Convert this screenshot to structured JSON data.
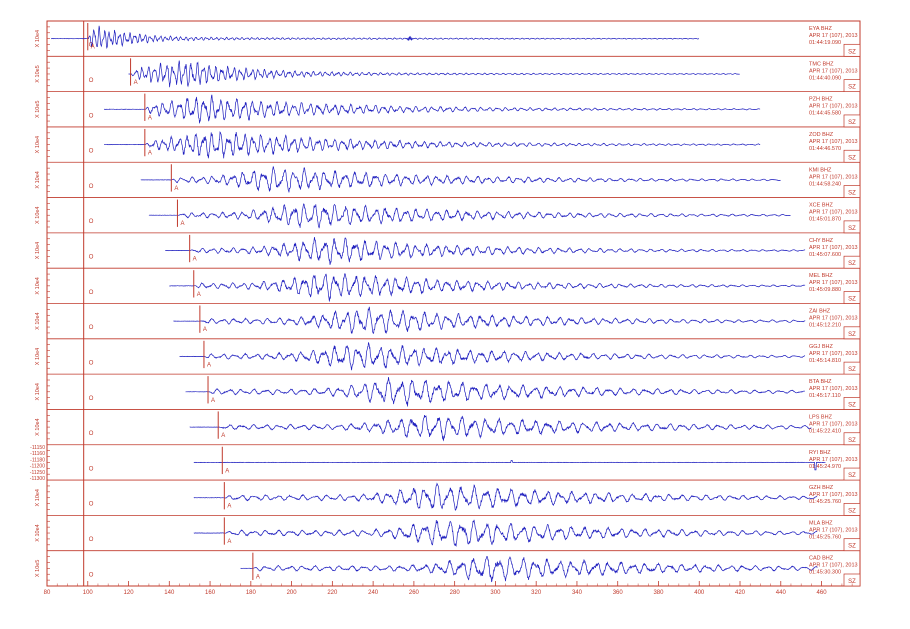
{
  "chart_data": {
    "type": "line",
    "title": "",
    "xlabel": "",
    "ylabel": "",
    "xlim": [
      80,
      472
    ],
    "x_ticks": [
      80,
      100,
      120,
      140,
      160,
      180,
      200,
      220,
      240,
      260,
      280,
      300,
      320,
      340,
      360,
      380,
      400,
      420,
      440,
      460
    ],
    "x_tick_labels": [
      "80",
      "100",
      "120",
      "140",
      "160",
      "180",
      "200",
      "220",
      "240",
      "260",
      "280",
      "300",
      "320",
      "340",
      "360",
      "380",
      "400",
      "420",
      "440",
      "460"
    ],
    "origin_time": 98,
    "origin_label": "O",
    "arrival_label": "A",
    "colors": {
      "frame": "#c0392b",
      "trace": "#1f1fbf",
      "text": "#c0392b"
    },
    "channel_box": "SZ",
    "traces": [
      {
        "station": "EYA",
        "channel": "BHZ",
        "date": "APR 17 (107), 2013",
        "time": "01:44:19.090",
        "scale": "X 10e4",
        "arrival": 100,
        "start": 82,
        "end": 400,
        "peak": 103,
        "decay": 18,
        "period": 2.5,
        "amp": 0.9,
        "extra": [
          [
            258,
            0.15
          ]
        ]
      },
      {
        "station": "TMC",
        "channel": "BHZ",
        "date": "APR 17 (107), 2013",
        "time": "01:44:40.090",
        "scale": "X 10e5",
        "arrival": 121,
        "start": 120,
        "end": 420,
        "peak": 150,
        "decay": 30,
        "period": 3,
        "amp": 0.9
      },
      {
        "station": "PZH",
        "channel": "BHZ",
        "date": "APR 17 (107), 2013",
        "time": "01:44:45.580",
        "scale": "X 10e5",
        "arrival": 128,
        "start": 108,
        "end": 430,
        "peak": 160,
        "decay": 60,
        "period": 4,
        "amp": 0.9
      },
      {
        "station": "ZOD",
        "channel": "BHZ",
        "date": "APR 17 (107), 2013",
        "time": "01:44:46.570",
        "scale": "X 10e4",
        "arrival": 128,
        "start": 108,
        "end": 430,
        "peak": 165,
        "decay": 60,
        "period": 4,
        "amp": 0.95
      },
      {
        "station": "KMI",
        "channel": "BHZ",
        "date": "APR 17 (107), 2013",
        "time": "01:44:58.240",
        "scale": "X 10e4",
        "arrival": 141,
        "start": 126,
        "end": 440,
        "peak": 195,
        "decay": 70,
        "period": 5,
        "amp": 0.85
      },
      {
        "station": "XCE",
        "channel": "BHZ",
        "date": "APR 17 (107), 2013",
        "time": "01:45:01.870",
        "scale": "X 10e4",
        "arrival": 144,
        "start": 130,
        "end": 445,
        "peak": 210,
        "decay": 70,
        "period": 5,
        "amp": 0.85
      },
      {
        "station": "CHY",
        "channel": "BHZ",
        "date": "APR 17 (107), 2013",
        "time": "01:45:07.600",
        "scale": "X 10e4",
        "arrival": 150,
        "start": 138,
        "end": 452,
        "peak": 220,
        "decay": 60,
        "period": 5,
        "amp": 0.9
      },
      {
        "station": "MEL",
        "channel": "BHZ",
        "date": "APR 17 (107), 2013",
        "time": "01:45:09.880",
        "scale": "X 10e4",
        "arrival": 152,
        "start": 140,
        "end": 452,
        "peak": 222,
        "decay": 60,
        "period": 5,
        "amp": 0.95
      },
      {
        "station": "ZAI",
        "channel": "BHZ",
        "date": "APR 17 (107), 2013",
        "time": "01:45:12.210",
        "scale": "X 10e4",
        "arrival": 155,
        "start": 142,
        "end": 452,
        "peak": 238,
        "decay": 70,
        "period": 5.5,
        "amp": 0.9
      },
      {
        "station": "GGJ",
        "channel": "BHZ",
        "date": "APR 17 (107), 2013",
        "time": "01:45:14.810",
        "scale": "X 10e4",
        "arrival": 157,
        "start": 145,
        "end": 452,
        "peak": 235,
        "decay": 70,
        "period": 5.5,
        "amp": 0.9
      },
      {
        "station": "BTA",
        "channel": "BHZ",
        "date": "APR 17 (107), 2013",
        "time": "01:45:17.110",
        "scale": "X 10e4",
        "arrival": 159,
        "start": 148,
        "end": 452,
        "peak": 255,
        "decay": 70,
        "period": 6,
        "amp": 0.95
      },
      {
        "station": "LPS",
        "channel": "BHZ",
        "date": "APR 17 (107), 2013",
        "time": "01:45:22.410",
        "scale": "X 10e4",
        "arrival": 164,
        "start": 150,
        "end": 455,
        "peak": 268,
        "decay": 80,
        "period": 6,
        "amp": 0.85
      },
      {
        "station": "RYI",
        "channel": "BHZ",
        "date": "APR 17 (107), 2013",
        "time": "01:45:24.970",
        "scale": "",
        "arrival": 166,
        "start": 152,
        "end": 462,
        "peak": 300,
        "decay": 80,
        "period": 6,
        "amp": 0.04,
        "flat": true,
        "yticks": [
          "-11150",
          "-11160",
          "-11180",
          "-11200",
          "-11250",
          "-11300"
        ]
      },
      {
        "station": "GZH",
        "channel": "BHZ",
        "date": "APR 17 (107), 2013",
        "time": "01:45:25.760",
        "scale": "X 10e4",
        "arrival": 167,
        "start": 152,
        "end": 458,
        "peak": 275,
        "decay": 70,
        "period": 6,
        "amp": 0.95
      },
      {
        "station": "MLA",
        "channel": "BHZ",
        "date": "APR 17 (107), 2013",
        "time": "01:45:25.760",
        "scale": "X 10e4",
        "arrival": 167,
        "start": 152,
        "end": 458,
        "peak": 280,
        "decay": 70,
        "period": 6,
        "amp": 0.95
      },
      {
        "station": "CAD",
        "channel": "BHZ",
        "date": "APR 17 (107), 2013",
        "time": "01:45:30.300",
        "scale": "X 10e5",
        "arrival": 181,
        "start": 175,
        "end": 458,
        "peak": 300,
        "decay": 70,
        "period": 6,
        "amp": 0.9
      }
    ]
  }
}
